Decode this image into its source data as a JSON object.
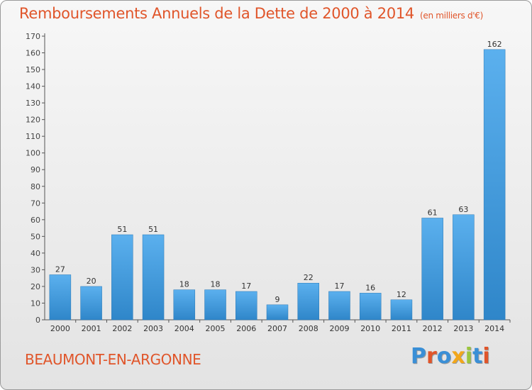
{
  "header": {
    "title": "Remboursements Annuels de la Dette de 2000 à 2014",
    "subtitle": "(en milliers d'€)"
  },
  "footer": {
    "commune": "BEAUMONT-EN-ARGONNE",
    "logo": "Proxiti",
    "logo_colors": [
      "#3a8fd6",
      "#e0552a",
      "#3a8fd6",
      "#f2a71b",
      "#9bc53d",
      "#3a8fd6",
      "#e0552a"
    ]
  },
  "colors": {
    "bar_top": "#5bb0ee",
    "bar_bottom": "#2f86c9",
    "accent": "#e0552a"
  },
  "chart_data": {
    "type": "bar",
    "title": "Remboursements Annuels de la Dette de 2000 à 2014",
    "subtitle": "(en milliers d'€)",
    "categories": [
      "2000",
      "2001",
      "2002",
      "2003",
      "2004",
      "2005",
      "2006",
      "2007",
      "2008",
      "2009",
      "2010",
      "2011",
      "2012",
      "2013",
      "2014"
    ],
    "values": [
      27,
      20,
      51,
      51,
      18,
      18,
      17,
      9,
      22,
      17,
      16,
      12,
      61,
      63,
      162
    ],
    "ylim": [
      0,
      170
    ],
    "yticks": [
      0,
      10,
      20,
      30,
      40,
      50,
      60,
      70,
      80,
      90,
      100,
      110,
      120,
      130,
      140,
      150,
      160,
      170
    ],
    "grid": false,
    "data_labels": true
  }
}
